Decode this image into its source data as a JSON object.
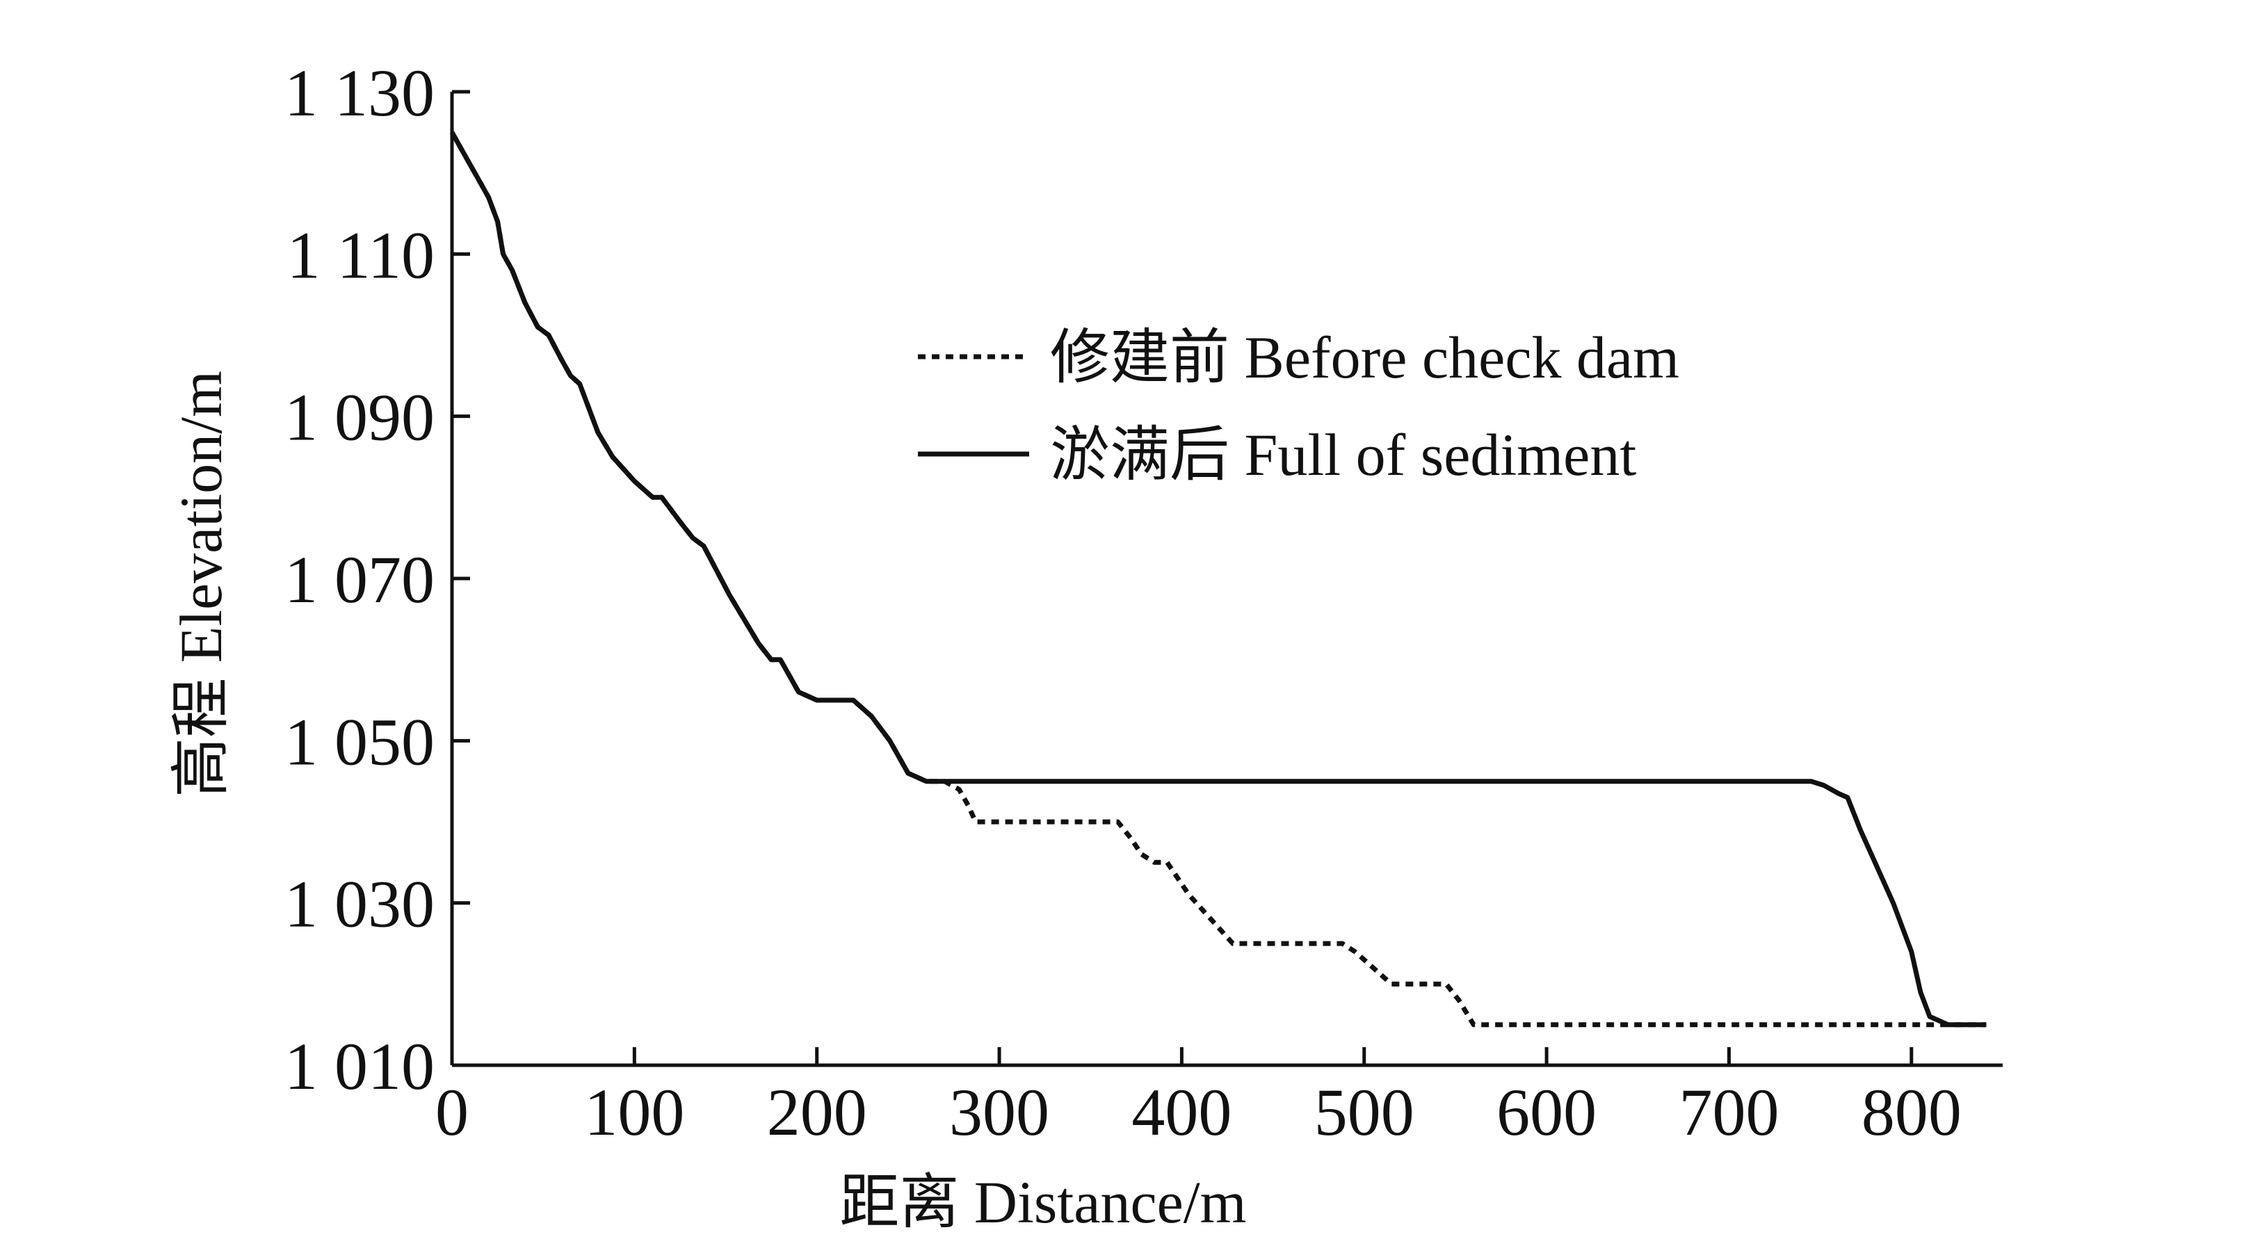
{
  "chart_data": {
    "type": "line",
    "title": "",
    "xlabel": "距离 Distance/m",
    "ylabel": "高程 Elevation/m",
    "xlim": [
      0,
      850
    ],
    "ylim": [
      1010,
      1130
    ],
    "x_ticks": [
      0,
      100,
      200,
      300,
      400,
      500,
      600,
      700,
      800
    ],
    "x_tick_labels": [
      "0",
      "100",
      "200",
      "300",
      "400",
      "500",
      "600",
      "700",
      "800"
    ],
    "y_ticks": [
      1010,
      1030,
      1050,
      1070,
      1090,
      1110,
      1130
    ],
    "y_tick_labels": [
      "1 010",
      "1 030",
      "1 050",
      "1 070",
      "1 090",
      "1 110",
      "1 130"
    ],
    "grid": false,
    "legend_position": "top-right",
    "series": [
      {
        "name": "修建前 Before check dam",
        "style": "dotted",
        "color": "#111111",
        "points": [
          [
            0,
            1125
          ],
          [
            5,
            1123
          ],
          [
            10,
            1121
          ],
          [
            15,
            1119
          ],
          [
            20,
            1117
          ],
          [
            25,
            1114
          ],
          [
            28,
            1110
          ],
          [
            33,
            1108
          ],
          [
            40,
            1104
          ],
          [
            47,
            1101
          ],
          [
            53,
            1100
          ],
          [
            60,
            1097
          ],
          [
            65,
            1095
          ],
          [
            70,
            1094
          ],
          [
            80,
            1088
          ],
          [
            88,
            1085
          ],
          [
            100,
            1082
          ],
          [
            110,
            1080
          ],
          [
            115,
            1080
          ],
          [
            125,
            1077
          ],
          [
            132,
            1075
          ],
          [
            138,
            1074
          ],
          [
            145,
            1071
          ],
          [
            152,
            1068
          ],
          [
            160,
            1065
          ],
          [
            168,
            1062
          ],
          [
            175,
            1060
          ],
          [
            180,
            1060
          ],
          [
            185,
            1058
          ],
          [
            190,
            1056
          ],
          [
            200,
            1055
          ],
          [
            210,
            1055
          ],
          [
            220,
            1055
          ],
          [
            230,
            1053
          ],
          [
            240,
            1050
          ],
          [
            250,
            1046
          ],
          [
            260,
            1045
          ],
          [
            270,
            1045
          ],
          [
            278,
            1044
          ],
          [
            283,
            1042
          ],
          [
            287,
            1040
          ],
          [
            300,
            1040
          ],
          [
            330,
            1040
          ],
          [
            365,
            1040
          ],
          [
            372,
            1038
          ],
          [
            378,
            1036
          ],
          [
            385,
            1035
          ],
          [
            392,
            1035
          ],
          [
            398,
            1033
          ],
          [
            404,
            1031
          ],
          [
            412,
            1029
          ],
          [
            420,
            1027
          ],
          [
            428,
            1025
          ],
          [
            450,
            1025
          ],
          [
            488,
            1025
          ],
          [
            495,
            1024
          ],
          [
            505,
            1022
          ],
          [
            515,
            1020
          ],
          [
            530,
            1020
          ],
          [
            545,
            1020
          ],
          [
            552,
            1018
          ],
          [
            560,
            1015
          ],
          [
            600,
            1015
          ],
          [
            700,
            1015
          ],
          [
            800,
            1015
          ],
          [
            810,
            1015
          ],
          [
            820,
            1015
          ],
          [
            841,
            1015
          ]
        ]
      },
      {
        "name": "淤满后 Full of sediment",
        "style": "solid",
        "color": "#111111",
        "points": [
          [
            0,
            1125
          ],
          [
            5,
            1123
          ],
          [
            10,
            1121
          ],
          [
            15,
            1119
          ],
          [
            20,
            1117
          ],
          [
            25,
            1114
          ],
          [
            28,
            1110
          ],
          [
            33,
            1108
          ],
          [
            40,
            1104
          ],
          [
            47,
            1101
          ],
          [
            53,
            1100
          ],
          [
            60,
            1097
          ],
          [
            65,
            1095
          ],
          [
            70,
            1094
          ],
          [
            80,
            1088
          ],
          [
            88,
            1085
          ],
          [
            100,
            1082
          ],
          [
            110,
            1080
          ],
          [
            115,
            1080
          ],
          [
            125,
            1077
          ],
          [
            132,
            1075
          ],
          [
            138,
            1074
          ],
          [
            145,
            1071
          ],
          [
            152,
            1068
          ],
          [
            160,
            1065
          ],
          [
            168,
            1062
          ],
          [
            175,
            1060
          ],
          [
            180,
            1060
          ],
          [
            185,
            1058
          ],
          [
            190,
            1056
          ],
          [
            200,
            1055
          ],
          [
            210,
            1055
          ],
          [
            220,
            1055
          ],
          [
            230,
            1053
          ],
          [
            240,
            1050
          ],
          [
            250,
            1046
          ],
          [
            260,
            1045
          ],
          [
            300,
            1045
          ],
          [
            400,
            1045
          ],
          [
            500,
            1045
          ],
          [
            600,
            1045
          ],
          [
            700,
            1045
          ],
          [
            745,
            1045
          ],
          [
            752,
            1044.5
          ],
          [
            760,
            1043.5
          ],
          [
            765,
            1043
          ],
          [
            772,
            1039
          ],
          [
            780,
            1035
          ],
          [
            790,
            1030
          ],
          [
            800,
            1024
          ],
          [
            805,
            1019
          ],
          [
            810,
            1016
          ],
          [
            820,
            1015
          ],
          [
            830,
            1015
          ],
          [
            841,
            1015
          ]
        ]
      }
    ]
  }
}
